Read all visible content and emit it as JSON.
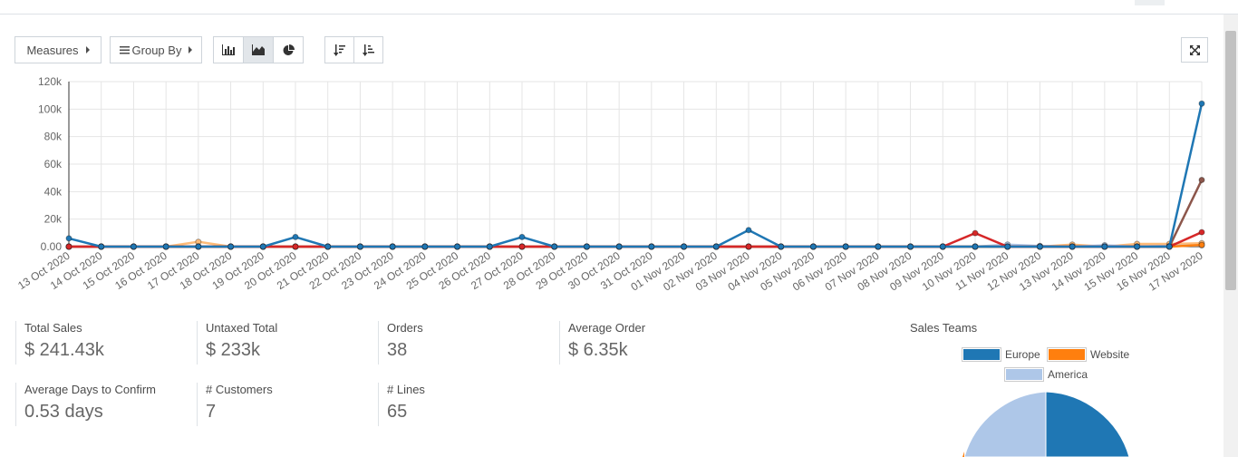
{
  "toolbar": {
    "measures_label": "Measures",
    "groupby_label": "Group By"
  },
  "colors": {
    "europe": "#1f77b4",
    "website": "#ff7f0e",
    "america": "#aec7e8",
    "red": "#d62728",
    "brown": "#8c564b",
    "lightorange": "#ffbb78"
  },
  "chart_data": {
    "type": "line",
    "categories": [
      "13 Oct 2020",
      "14 Oct 2020",
      "15 Oct 2020",
      "16 Oct 2020",
      "17 Oct 2020",
      "18 Oct 2020",
      "19 Oct 2020",
      "20 Oct 2020",
      "21 Oct 2020",
      "22 Oct 2020",
      "23 Oct 2020",
      "24 Oct 2020",
      "25 Oct 2020",
      "26 Oct 2020",
      "27 Oct 2020",
      "28 Oct 2020",
      "29 Oct 2020",
      "30 Oct 2020",
      "31 Oct 2020",
      "01 Nov 2020",
      "02 Nov 2020",
      "03 Nov 2020",
      "04 Nov 2020",
      "05 Nov 2020",
      "06 Nov 2020",
      "07 Nov 2020",
      "08 Nov 2020",
      "09 Nov 2020",
      "10 Nov 2020",
      "11 Nov 2020",
      "12 Nov 2020",
      "13 Nov 2020",
      "14 Nov 2020",
      "15 Nov 2020",
      "16 Nov 2020",
      "17 Nov 2020"
    ],
    "y_ticks": [
      "0.00",
      "20k",
      "40k",
      "60k",
      "80k",
      "100k",
      "120k"
    ],
    "ylim": [
      0,
      120000
    ],
    "grid": true,
    "series": [
      {
        "color": "#ffbb78",
        "values": [
          0,
          0,
          0,
          0,
          3500,
          0,
          0,
          0,
          0,
          0,
          0,
          0,
          0,
          0,
          0,
          0,
          0,
          0,
          0,
          0,
          0,
          0,
          0,
          0,
          0,
          0,
          0,
          0,
          0,
          0,
          0,
          1500,
          0,
          2000,
          2000,
          2500
        ]
      },
      {
        "color": "#aec7e8",
        "values": [
          0,
          0,
          0,
          0,
          0,
          0,
          0,
          0,
          0,
          0,
          0,
          0,
          0,
          0,
          0,
          0,
          0,
          0,
          0,
          0,
          0,
          0,
          0,
          0,
          0,
          0,
          0,
          0,
          0,
          1500,
          500,
          0,
          1000,
          0,
          500,
          1000
        ]
      },
      {
        "color": "#ff7f0e",
        "values": [
          0,
          0,
          0,
          0,
          0,
          0,
          0,
          0,
          0,
          0,
          0,
          0,
          0,
          0,
          0,
          0,
          0,
          0,
          0,
          0,
          0,
          0,
          0,
          0,
          0,
          0,
          0,
          0,
          0,
          0,
          0,
          0,
          0,
          0,
          0,
          1200
        ]
      },
      {
        "color": "#8c564b",
        "values": [
          0,
          0,
          0,
          0,
          0,
          0,
          0,
          0,
          0,
          0,
          0,
          0,
          0,
          0,
          0,
          0,
          0,
          0,
          0,
          0,
          0,
          0,
          0,
          0,
          0,
          0,
          0,
          0,
          0,
          0,
          0,
          0,
          0,
          0,
          0,
          48500
        ]
      },
      {
        "color": "#d62728",
        "values": [
          0,
          0,
          0,
          0,
          0,
          0,
          0,
          0,
          0,
          0,
          0,
          0,
          0,
          0,
          0,
          0,
          0,
          0,
          0,
          0,
          0,
          0,
          0,
          0,
          0,
          0,
          0,
          0,
          9800,
          0,
          0,
          0,
          0,
          0,
          0,
          10500
        ]
      },
      {
        "color": "#1f77b4",
        "values": [
          6000,
          0,
          0,
          0,
          0,
          0,
          0,
          7000,
          0,
          0,
          0,
          0,
          0,
          0,
          7000,
          0,
          0,
          0,
          0,
          0,
          0,
          12000,
          0,
          0,
          0,
          0,
          0,
          0,
          0,
          0,
          0,
          0,
          0,
          0,
          0,
          104000
        ]
      }
    ]
  },
  "kpis": [
    {
      "label": "Total Sales",
      "value": "$ 241.43k"
    },
    {
      "label": "Untaxed Total",
      "value": "$ 233k"
    },
    {
      "label": "Orders",
      "value": "38"
    },
    {
      "label": "Average Order",
      "value": "$ 6.35k"
    },
    {
      "label": "Average Days to Confirm",
      "value": "0.53 days"
    },
    {
      "label": "# Customers",
      "value": "7"
    },
    {
      "label": "# Lines",
      "value": "65"
    }
  ],
  "pie": {
    "title": "Sales Teams",
    "legend": [
      {
        "label": "Europe",
        "color": "#1f77b4"
      },
      {
        "label": "Website",
        "color": "#ff7f0e"
      },
      {
        "label": "America",
        "color": "#aec7e8"
      }
    ]
  }
}
